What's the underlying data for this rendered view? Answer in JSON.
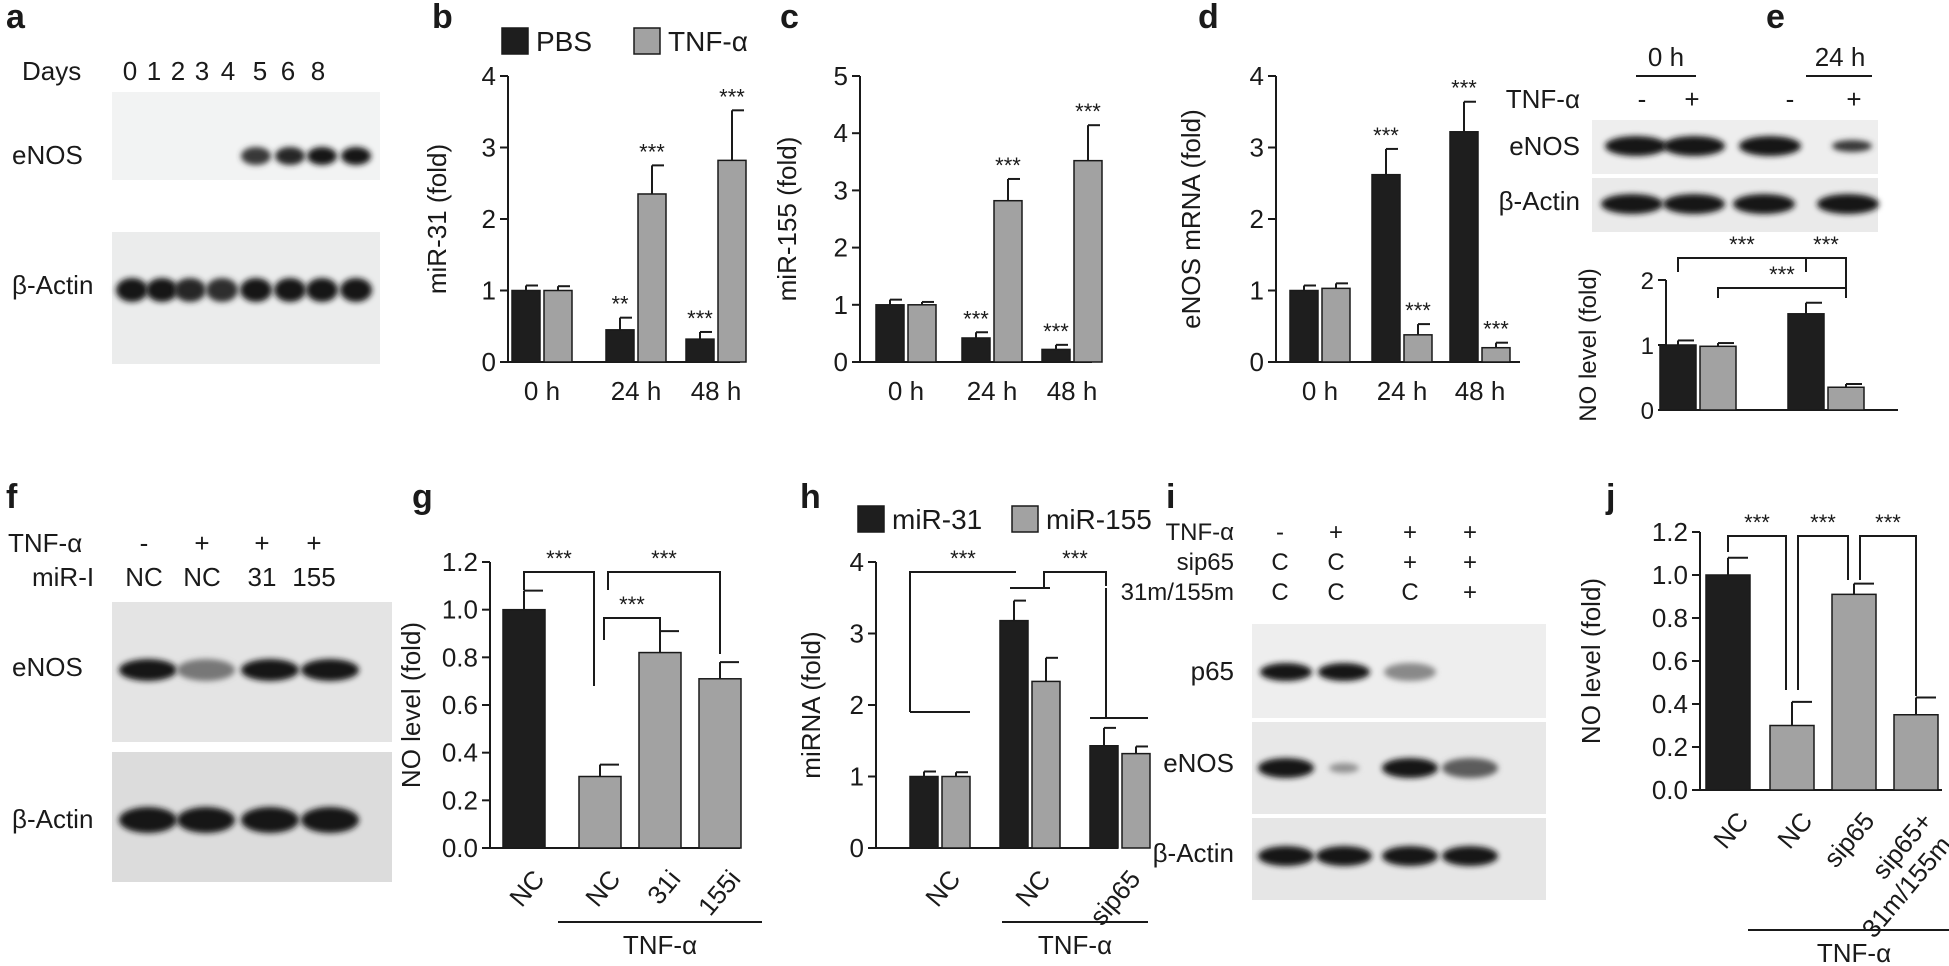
{
  "colors": {
    "black_bar": "#1e1e1e",
    "gray_bar": "#a2a2a2",
    "axis": "#1a1a1a"
  },
  "panel_a": {
    "letter": "a",
    "days_label": "Days",
    "days": [
      "0",
      "1",
      "2",
      "3",
      "4",
      "5",
      "6",
      "8"
    ],
    "row_labels": [
      "eNOS",
      "β-Actin"
    ],
    "enos_intensity": [
      0,
      0,
      0,
      0,
      0.8,
      0.9,
      1,
      1
    ],
    "actin_intensity": [
      1,
      1,
      0.9,
      0.85,
      1,
      1,
      1,
      1
    ]
  },
  "panel_e_blot": {
    "time_labels": [
      "0 h",
      "24 h"
    ],
    "treatment_label": "TNF-α",
    "signs": [
      "-",
      "+",
      "-",
      "+"
    ],
    "row_labels": [
      "eNOS",
      "β-Actin"
    ]
  },
  "panel_f": {
    "letter": "f",
    "treatment_rows": [
      {
        "label": "TNF-α",
        "values": [
          "-",
          "+",
          "+",
          "+"
        ]
      },
      {
        "label": "miR-I",
        "values": [
          "NC",
          "NC",
          "31",
          "155"
        ]
      }
    ],
    "row_labels": [
      "eNOS",
      "β-Actin"
    ],
    "enos_intensity": [
      1,
      0.45,
      1,
      1
    ]
  },
  "panel_i": {
    "letter": "i",
    "treatment_rows": [
      {
        "label": "TNF-α",
        "values": [
          "-",
          "+",
          "+",
          "+"
        ]
      },
      {
        "label": "sip65",
        "values": [
          "C",
          "C",
          "+",
          "+"
        ]
      },
      {
        "label": "31m/155m",
        "values": [
          "C",
          "C",
          "C",
          "+"
        ]
      }
    ],
    "row_labels": [
      "p65",
      "eNOS",
      "β-Actin"
    ],
    "p65_intensity": [
      1,
      1,
      0.35,
      0
    ],
    "enos_intensity": [
      1,
      0.3,
      1,
      0.6
    ]
  },
  "chart_data": [
    {
      "panel": "b",
      "type": "bar",
      "categories": [
        "0 h",
        "24 h",
        "48 h"
      ],
      "series": [
        {
          "name": "PBS",
          "values": [
            1.0,
            0.45,
            0.32
          ],
          "errors": [
            0.07,
            0.17,
            0.1
          ]
        },
        {
          "name": "TNF-α",
          "values": [
            1.0,
            2.35,
            2.82
          ],
          "errors": [
            0.06,
            0.4,
            0.7
          ]
        }
      ],
      "annotations": [
        {
          "text": "**",
          "category": 1,
          "series": 0
        },
        {
          "text": "***",
          "category": 1,
          "series": 1
        },
        {
          "text": "***",
          "category": 2,
          "series": 0
        },
        {
          "text": "***",
          "category": 2,
          "series": 1
        }
      ],
      "ylabel": "miR-31 (fold)",
      "ylim": [
        0,
        4
      ],
      "yticks": [
        "0",
        "1",
        "2",
        "3",
        "4"
      ],
      "legend": [
        "PBS",
        "TNF-α"
      ]
    },
    {
      "panel": "c",
      "type": "bar",
      "categories": [
        "0 h",
        "24 h",
        "48 h"
      ],
      "series": [
        {
          "name": "PBS",
          "values": [
            1.0,
            0.42,
            0.22
          ],
          "errors": [
            0.09,
            0.1,
            0.08
          ]
        },
        {
          "name": "TNF-α",
          "values": [
            1.0,
            2.82,
            3.52
          ],
          "errors": [
            0.05,
            0.38,
            0.62
          ]
        }
      ],
      "annotations": [
        {
          "text": "***",
          "category": 1,
          "series": 0
        },
        {
          "text": "***",
          "category": 1,
          "series": 1
        },
        {
          "text": "***",
          "category": 2,
          "series": 0
        },
        {
          "text": "***",
          "category": 2,
          "series": 1
        }
      ],
      "ylabel": "miR-155 (fold)",
      "ylim": [
        0,
        5
      ],
      "yticks": [
        "0",
        "1",
        "2",
        "3",
        "4",
        "5"
      ]
    },
    {
      "panel": "d",
      "type": "bar",
      "categories": [
        "0 h",
        "24 h",
        "48 h"
      ],
      "series": [
        {
          "name": "PBS",
          "values": [
            1.0,
            2.62,
            3.22
          ],
          "errors": [
            0.07,
            0.36,
            0.42
          ]
        },
        {
          "name": "TNF-α",
          "values": [
            1.03,
            0.38,
            0.2
          ],
          "errors": [
            0.07,
            0.15,
            0.07
          ]
        }
      ],
      "annotations": [
        {
          "text": "***",
          "category": 1,
          "series": 0
        },
        {
          "text": "***",
          "category": 1,
          "series": 1
        },
        {
          "text": "***",
          "category": 2,
          "series": 0
        },
        {
          "text": "***",
          "category": 2,
          "series": 1
        }
      ],
      "ylabel": "eNOS mRNA (fold)",
      "ylim": [
        0,
        4
      ],
      "yticks": [
        "0",
        "1",
        "2",
        "3",
        "4"
      ]
    },
    {
      "panel": "e",
      "type": "bar",
      "categories": [
        "0 h",
        "24 h"
      ],
      "series": [
        {
          "name": "-",
          "values": [
            1.0,
            1.48
          ],
          "errors": [
            0.07,
            0.17
          ]
        },
        {
          "name": "+",
          "values": [
            0.98,
            0.35
          ],
          "errors": [
            0.05,
            0.05
          ]
        }
      ],
      "brackets": [
        {
          "label": "***",
          "from": [
            0,
            0
          ],
          "to": [
            1,
            0
          ],
          "level": 2
        },
        {
          "label": "***",
          "from": [
            0,
            1
          ],
          "to": [
            1,
            1
          ],
          "level": 1
        },
        {
          "label": "***",
          "from": [
            1,
            0
          ],
          "to": [
            1,
            1
          ],
          "level": 1
        }
      ],
      "ylabel": "NO level (fold)",
      "ylim": [
        0,
        2
      ],
      "yticks": [
        "0",
        "1",
        "2"
      ]
    },
    {
      "panel": "g",
      "type": "bar",
      "categories": [
        "NC",
        "NC",
        "31i",
        "155i"
      ],
      "values": [
        1.0,
        0.3,
        0.82,
        0.71
      ],
      "errors": [
        0.08,
        0.05,
        0.09,
        0.07
      ],
      "bar_colors": [
        "black",
        "gray",
        "gray",
        "gray"
      ],
      "brackets": [
        {
          "label": "***",
          "from": 0,
          "to": 1,
          "level": 0
        },
        {
          "label": "***",
          "from": 1,
          "to": 2,
          "level": 1
        },
        {
          "label": "***",
          "from": 1,
          "to": 3,
          "level": 0
        }
      ],
      "group_label": {
        "text": "TNF-α",
        "from": 1,
        "to": 3
      },
      "ylabel": "NO level (fold)",
      "ylim": [
        0,
        1.2
      ],
      "yticks": [
        "0.0",
        "0.2",
        "0.4",
        "0.6",
        "0.8",
        "1.0",
        "1.2"
      ]
    },
    {
      "panel": "h",
      "type": "bar",
      "categories": [
        "NC",
        "NC",
        "sip65"
      ],
      "series": [
        {
          "name": "miR-31",
          "values": [
            1.0,
            3.18,
            1.43
          ],
          "errors": [
            0.07,
            0.28,
            0.25
          ]
        },
        {
          "name": "miR-155",
          "values": [
            1.0,
            2.33,
            1.32
          ],
          "errors": [
            0.06,
            0.33,
            0.1
          ]
        }
      ],
      "brackets": [
        {
          "label": "***",
          "from": 0,
          "to": 1
        },
        {
          "label": "***",
          "from": 1,
          "to": 2
        }
      ],
      "group_label": {
        "text": "TNF-α",
        "from": 1,
        "to": 2
      },
      "ylabel": "miRNA (fold)",
      "ylim": [
        0,
        4
      ],
      "yticks": [
        "0",
        "1",
        "2",
        "3",
        "4"
      ],
      "legend": [
        "miR-31",
        "miR-155"
      ]
    },
    {
      "panel": "j",
      "type": "bar",
      "categories": [
        "NC",
        "NC",
        "sip65",
        "sip65+ 31m/155m"
      ],
      "category_lines": [
        [
          "NC"
        ],
        [
          "NC"
        ],
        [
          "sip65"
        ],
        [
          "sip65+",
          "31m/155m"
        ]
      ],
      "values": [
        1.0,
        0.3,
        0.91,
        0.35
      ],
      "errors": [
        0.08,
        0.11,
        0.05,
        0.08
      ],
      "bar_colors": [
        "black",
        "gray",
        "gray",
        "gray"
      ],
      "brackets": [
        {
          "label": "***",
          "from": 0,
          "to": 1
        },
        {
          "label": "***",
          "from": 1,
          "to": 2
        },
        {
          "label": "***",
          "from": 2,
          "to": 3
        }
      ],
      "group_label": {
        "text": "TNF-α",
        "from": 1,
        "to": 3
      },
      "ylabel": "NO level (fold)",
      "ylim": [
        0,
        1.2
      ],
      "yticks": [
        "0.0",
        "0.2",
        "0.4",
        "0.6",
        "0.8",
        "1.0",
        "1.2"
      ]
    }
  ]
}
